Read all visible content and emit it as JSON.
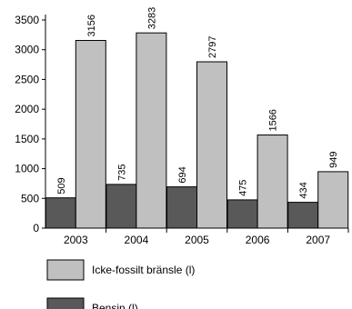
{
  "chart_data": {
    "type": "bar",
    "categories": [
      "2003",
      "2004",
      "2005",
      "2006",
      "2007"
    ],
    "series": [
      {
        "name": "Bensin (l)",
        "values": [
          509,
          735,
          694,
          475,
          434
        ],
        "color": "#595959"
      },
      {
        "name": "Icke-fossilt bränsle (l)",
        "values": [
          3156,
          3283,
          2797,
          1566,
          949
        ],
        "color": "#c0c0c0"
      }
    ],
    "yticks": [
      "0",
      "500",
      "1000",
      "1500",
      "2000",
      "2500",
      "3000",
      "3500"
    ],
    "ylim": [
      0,
      3500
    ],
    "grid": false,
    "legend_order": [
      1,
      0
    ],
    "legend_placement": "bottom"
  }
}
